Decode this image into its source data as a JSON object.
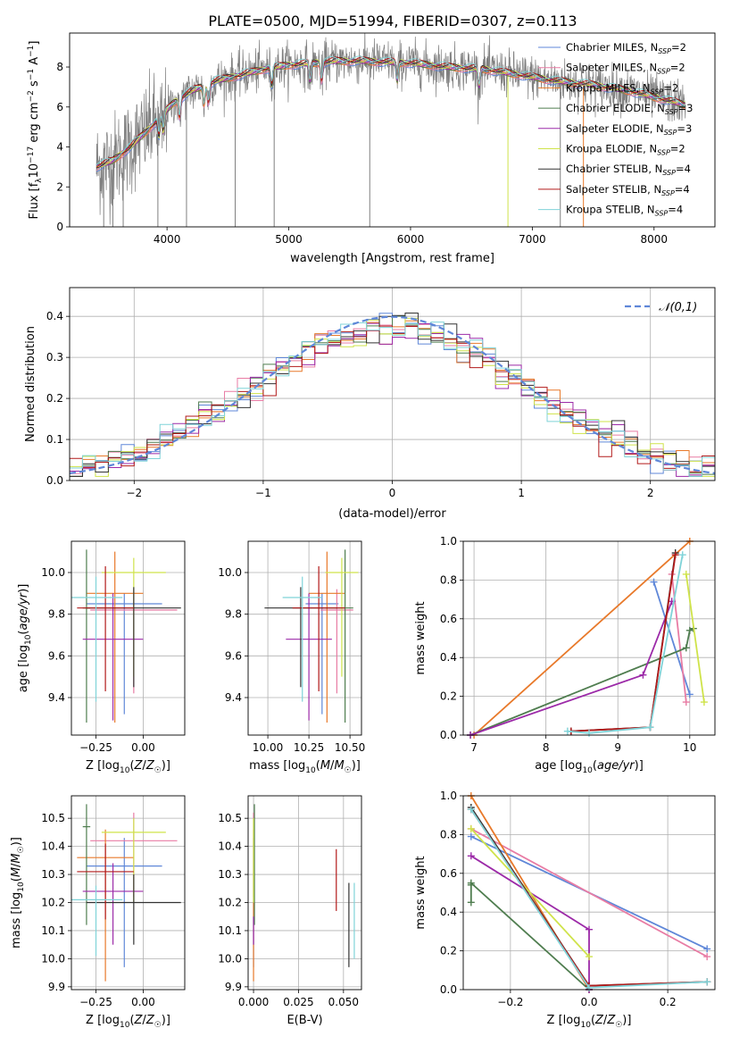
{
  "title": "PLATE=0500, MJD=51994, FIBERID=0307, z=0.113",
  "colors": {
    "Chabrier MILES": "#5f87d8",
    "Salpeter MILES": "#e87ca4",
    "Kroupa MILES": "#e8792a",
    "Chabrier ELODIE": "#4f7d4f",
    "Salpeter ELODIE": "#9c2aa8",
    "Kroupa ELODIE": "#cfe34a",
    "Chabrier STELIB": "#333333",
    "Salpeter STELIB": "#b21a1a",
    "Kroupa STELIB": "#7fd3d8",
    "data": "#7f7f7f",
    "normal": "#5f87d8",
    "grid": "#b0b0b0"
  },
  "chart_data": [
    {
      "id": "spectrum",
      "type": "line",
      "xlabel": "wavelength [Angstrom, rest frame]",
      "ylabel": "Flux [f_λ 10^-17 erg cm^-2 s^-1 A^-1]",
      "xlim": [
        3200,
        8500
      ],
      "ylim": [
        0,
        9.7
      ],
      "xticks": [
        4000,
        5000,
        6000,
        7000,
        8000
      ],
      "yticks": [
        0,
        2,
        4,
        6,
        8
      ],
      "grid": false,
      "legend_position": "top-right",
      "legend": [
        {
          "label": "Chabrier MILES, N_SSP=2",
          "prefix": "Chabrier MILES, N",
          "sub": "SSP",
          "suffix": "=2"
        },
        {
          "label": "Salpeter MILES, N_SSP=2",
          "prefix": "Salpeter MILES, N",
          "sub": "SSP",
          "suffix": "=2"
        },
        {
          "label": "Kroupa MILES, N_SSP=2",
          "prefix": "Kroupa MILES, N",
          "sub": "SSP",
          "suffix": "=2"
        },
        {
          "label": "Chabrier ELODIE, N_SSP=3",
          "prefix": "Chabrier ELODIE, N",
          "sub": "SSP",
          "suffix": "=3"
        },
        {
          "label": "Salpeter ELODIE, N_SSP=3",
          "prefix": "Salpeter ELODIE, N",
          "sub": "SSP",
          "suffix": "=3"
        },
        {
          "label": "Kroupa ELODIE, N_SSP=2",
          "prefix": "Kroupa ELODIE, N",
          "sub": "SSP",
          "suffix": "=2"
        },
        {
          "label": "Chabrier STELIB, N_SSP=4",
          "prefix": "Chabrier STELIB, N",
          "sub": "SSP",
          "suffix": "=4"
        },
        {
          "label": "Salpeter STELIB, N_SSP=4",
          "prefix": "Salpeter STELIB, N",
          "sub": "SSP",
          "suffix": "=4"
        },
        {
          "label": "Kroupa STELIB, N_SSP=4",
          "prefix": "Kroupa STELIB, N",
          "sub": "SSP",
          "suffix": "=4"
        }
      ],
      "series_keys": [
        "Chabrier MILES",
        "Salpeter MILES",
        "Kroupa MILES",
        "Chabrier ELODIE",
        "Salpeter ELODIE",
        "Kroupa ELODIE",
        "Chabrier STELIB",
        "Salpeter STELIB",
        "Kroupa STELIB"
      ],
      "data_range": [
        3420,
        8260
      ],
      "model_range": [
        3420,
        8260
      ],
      "model_continuum": {
        "x": [
          3420,
          3550,
          3700,
          3850,
          3950,
          4050,
          4200,
          4400,
          4600,
          4800,
          5000,
          5200,
          5400,
          5600,
          5800,
          6000,
          6300,
          6600,
          6900,
          7200,
          7500,
          7800,
          8000,
          8260
        ],
        "y": [
          3.0,
          3.3,
          4.0,
          4.9,
          5.5,
          6.2,
          6.8,
          7.3,
          7.6,
          7.9,
          8.1,
          8.2,
          8.3,
          8.3,
          8.25,
          8.2,
          8.0,
          7.9,
          7.6,
          7.3,
          7.1,
          6.8,
          6.5,
          6.1
        ]
      },
      "absorption_lines": [
        3934,
        3969,
        4102,
        4304,
        4340,
        4861,
        5175,
        5270,
        5890,
        6563
      ]
    },
    {
      "id": "residuals",
      "type": "histogram",
      "xlabel": "(data-model)/error",
      "ylabel": "Normed distribution",
      "xlim": [
        -2.5,
        2.5
      ],
      "ylim": [
        0,
        0.47
      ],
      "xticks": [
        -2,
        -1,
        0,
        1,
        2
      ],
      "yticks": [
        0.0,
        0.1,
        0.2,
        0.3,
        0.4
      ],
      "grid": true,
      "legend_position": "top-right",
      "legend": [
        {
          "label": "𝒩(0,1)"
        }
      ],
      "bin_width": 0.1,
      "reference_curve": "normal distribution, mean 0, sigma 1"
    },
    {
      "id": "age-vs-Z",
      "type": "errorbar",
      "xlabel": "Z [log10(Z/Z☉)]",
      "ylabel": "age [log10(age/yr)]",
      "xlim": [
        -0.38,
        0.22
      ],
      "ylim": [
        9.22,
        10.15
      ],
      "xticks": [
        -0.25,
        0.0
      ],
      "yticks": [
        9.4,
        9.6,
        9.8,
        10.0
      ],
      "grid": true,
      "points": [
        {
          "model": "Chabrier MILES",
          "x": -0.1,
          "xerr": 0.2,
          "y": 9.85,
          "yerr": [
            0.53,
            0.05
          ]
        },
        {
          "model": "Salpeter MILES",
          "x": -0.05,
          "xerr": 0.23,
          "y": 9.82,
          "yerr": [
            0.4,
            0.1
          ]
        },
        {
          "model": "Kroupa MILES",
          "x": -0.15,
          "xerr": 0.15,
          "y": 9.9,
          "yerr": [
            0.62,
            0.2
          ]
        },
        {
          "model": "Chabrier ELODIE",
          "x": -0.3,
          "xerr": 0.02,
          "y": 9.83,
          "yerr": [
            0.55,
            0.28
          ]
        },
        {
          "model": "Salpeter ELODIE",
          "x": -0.16,
          "xerr": 0.16,
          "y": 9.68,
          "yerr": [
            0.39,
            0.22
          ]
        },
        {
          "model": "Kroupa ELODIE",
          "x": -0.05,
          "xerr": 0.17,
          "y": 10.0,
          "yerr": [
            0.5,
            0.07
          ]
        },
        {
          "model": "Chabrier STELIB",
          "x": -0.05,
          "xerr": 0.25,
          "y": 9.83,
          "yerr": [
            0.38,
            0.1
          ]
        },
        {
          "model": "Salpeter STELIB",
          "x": -0.2,
          "xerr": 0.15,
          "y": 9.83,
          "yerr": [
            0.4,
            0.2
          ]
        },
        {
          "model": "Kroupa STELIB",
          "x": -0.25,
          "xerr": 0.14,
          "y": 9.88,
          "yerr": [
            0.5,
            0.1
          ]
        }
      ]
    },
    {
      "id": "age-vs-mass",
      "type": "errorbar",
      "xlabel": "mass [log10(M/M☉)]",
      "ylabel": "",
      "xlim": [
        9.88,
        10.57
      ],
      "ylim": [
        9.22,
        10.15
      ],
      "xticks": [
        10.0,
        10.25,
        10.5
      ],
      "yticks": [
        9.4,
        9.6,
        9.8,
        10.0
      ],
      "grid": true,
      "points": [
        {
          "model": "Chabrier MILES",
          "x": 10.33,
          "xerr": 0.1,
          "y": 9.85,
          "yerr": [
            0.53,
            0.05
          ]
        },
        {
          "model": "Salpeter MILES",
          "x": 10.42,
          "xerr": 0.1,
          "y": 9.82,
          "yerr": [
            0.4,
            0.1
          ]
        },
        {
          "model": "Kroupa MILES",
          "x": 10.36,
          "xerr": 0.11,
          "y": 9.9,
          "yerr": [
            0.62,
            0.2
          ]
        },
        {
          "model": "Chabrier ELODIE",
          "x": 10.47,
          "xerr": 0.05,
          "y": 9.83,
          "yerr": [
            0.55,
            0.28
          ]
        },
        {
          "model": "Salpeter ELODIE",
          "x": 10.25,
          "xerr": 0.14,
          "y": 9.68,
          "yerr": [
            0.39,
            0.22
          ]
        },
        {
          "model": "Kroupa ELODIE",
          "x": 10.45,
          "xerr": 0.1,
          "y": 10.0,
          "yerr": [
            0.5,
            0.07
          ]
        },
        {
          "model": "Chabrier STELIB",
          "x": 10.2,
          "xerr": 0.22,
          "y": 9.83,
          "yerr": [
            0.38,
            0.1
          ]
        },
        {
          "model": "Salpeter STELIB",
          "x": 10.31,
          "xerr": 0.16,
          "y": 9.83,
          "yerr": [
            0.4,
            0.2
          ]
        },
        {
          "model": "Kroupa STELIB",
          "x": 10.21,
          "xerr": 0.12,
          "y": 9.88,
          "yerr": [
            0.5,
            0.1
          ]
        }
      ]
    },
    {
      "id": "weight-vs-age",
      "type": "line",
      "xlabel": "age [log10(age/yr)]",
      "ylabel": "mass weight",
      "xlim": [
        6.85,
        10.35
      ],
      "ylim": [
        0,
        1.0
      ],
      "xticks": [
        7,
        8,
        9,
        10
      ],
      "yticks": [
        0.0,
        0.2,
        0.4,
        0.6,
        0.8,
        1.0
      ],
      "grid": true,
      "series": [
        {
          "model": "Chabrier MILES",
          "x": [
            9.5,
            10.0
          ],
          "y": [
            0.79,
            0.21
          ]
        },
        {
          "model": "Salpeter MILES",
          "x": [
            9.75,
            9.95
          ],
          "y": [
            0.83,
            0.17
          ]
        },
        {
          "model": "Kroupa MILES",
          "x": [
            7.0,
            10.0
          ],
          "y": [
            0.0,
            1.0
          ]
        },
        {
          "model": "Chabrier ELODIE",
          "x": [
            6.95,
            9.95,
            10.0,
            10.05
          ],
          "y": [
            0.0,
            0.45,
            0.54,
            0.55
          ]
        },
        {
          "model": "Salpeter ELODIE",
          "x": [
            6.95,
            9.35,
            9.75
          ],
          "y": [
            0.0,
            0.31,
            0.69
          ]
        },
        {
          "model": "Kroupa ELODIE",
          "x": [
            9.95,
            10.2
          ],
          "y": [
            0.83,
            0.17
          ]
        },
        {
          "model": "Chabrier STELIB",
          "x": [
            8.35,
            9.45,
            9.8
          ],
          "y": [
            0.02,
            0.04,
            0.94
          ]
        },
        {
          "model": "Salpeter STELIB",
          "x": [
            8.35,
            9.45,
            9.8
          ],
          "y": [
            0.02,
            0.04,
            0.93
          ]
        },
        {
          "model": "Kroupa STELIB",
          "x": [
            8.3,
            8.6,
            9.45,
            9.9
          ],
          "y": [
            0.02,
            0.01,
            0.04,
            0.93
          ]
        }
      ]
    },
    {
      "id": "mass-vs-Z",
      "type": "errorbar",
      "xlabel": "Z [log10(Z/Z☉)]",
      "ylabel": "mass [log10(M/M☉)]",
      "xlim": [
        -0.38,
        0.22
      ],
      "ylim": [
        9.89,
        10.58
      ],
      "xticks": [
        -0.25,
        0.0
      ],
      "yticks": [
        9.9,
        10.0,
        10.1,
        10.2,
        10.3,
        10.4,
        10.5
      ],
      "grid": true,
      "points": [
        {
          "model": "Chabrier MILES",
          "x": -0.1,
          "xerr": 0.2,
          "y": 10.33,
          "yerr": [
            0.36,
            0.1
          ]
        },
        {
          "model": "Salpeter MILES",
          "x": -0.05,
          "xerr": 0.23,
          "y": 10.42,
          "yerr": [
            0.2,
            0.1
          ]
        },
        {
          "model": "Kroupa MILES",
          "x": -0.2,
          "xerr": 0.15,
          "y": 10.36,
          "yerr": [
            0.44,
            0.1
          ]
        },
        {
          "model": "Chabrier ELODIE",
          "x": -0.3,
          "xerr": 0.02,
          "y": 10.47,
          "yerr": [
            0.35,
            0.08
          ]
        },
        {
          "model": "Salpeter ELODIE",
          "x": -0.16,
          "xerr": 0.16,
          "y": 10.24,
          "yerr": [
            0.19,
            0.1
          ]
        },
        {
          "model": "Kroupa ELODIE",
          "x": -0.05,
          "xerr": 0.17,
          "y": 10.45,
          "yerr": [
            0.25,
            0.05
          ]
        },
        {
          "model": "Chabrier STELIB",
          "x": -0.05,
          "xerr": 0.25,
          "y": 10.2,
          "yerr": [
            0.15,
            0.1
          ]
        },
        {
          "model": "Salpeter STELIB",
          "x": -0.2,
          "xerr": 0.15,
          "y": 10.31,
          "yerr": [
            0.17,
            0.1
          ]
        },
        {
          "model": "Kroupa STELIB",
          "x": -0.25,
          "xerr": 0.14,
          "y": 10.21,
          "yerr": [
            0.2,
            0.05
          ]
        }
      ]
    },
    {
      "id": "mass-vs-ebv",
      "type": "errorbar",
      "xlabel": "E(B-V)",
      "ylabel": "",
      "xlim": [
        -0.003,
        0.06
      ],
      "ylim": [
        9.89,
        10.58
      ],
      "xticks": [
        0.0,
        0.025,
        0.05
      ],
      "yticks": [
        9.9,
        10.0,
        10.1,
        10.2,
        10.3,
        10.4,
        10.5
      ],
      "grid": true,
      "points": [
        {
          "model": "Chabrier MILES",
          "x": 0.0,
          "y": 10.33,
          "yerr": [
            0.36,
            0.1
          ]
        },
        {
          "model": "Salpeter MILES",
          "x": 0.0,
          "y": 10.42,
          "yerr": [
            0.2,
            0.1
          ]
        },
        {
          "model": "Kroupa MILES",
          "x": 0.0,
          "y": 10.36,
          "yerr": [
            0.44,
            0.1
          ]
        },
        {
          "model": "Chabrier ELODIE",
          "x": 0.0005,
          "y": 10.47,
          "yerr": [
            0.35,
            0.08
          ]
        },
        {
          "model": "Salpeter ELODIE",
          "x": 0.0,
          "y": 10.1,
          "yerr": [
            0.05,
            0.05
          ]
        },
        {
          "model": "Kroupa ELODIE",
          "x": 0.0,
          "y": 10.45,
          "yerr": [
            0.25,
            0.05
          ]
        },
        {
          "model": "Chabrier STELIB",
          "x": 0.053,
          "y": 10.07,
          "yerr": [
            0.1,
            0.2
          ]
        },
        {
          "model": "Salpeter STELIB",
          "x": 0.046,
          "y": 10.28,
          "yerr": [
            0.11,
            0.11
          ]
        },
        {
          "model": "Kroupa STELIB",
          "x": 0.056,
          "y": 10.1,
          "yerr": [
            0.1,
            0.17
          ]
        }
      ]
    },
    {
      "id": "weight-vs-Z",
      "type": "line",
      "xlabel": "Z [log10(Z/Z☉)]",
      "ylabel": "mass weight",
      "xlim": [
        -0.32,
        0.32
      ],
      "ylim": [
        0,
        1.0
      ],
      "xticks": [
        -0.2,
        0.0,
        0.2
      ],
      "yticks": [
        0.0,
        0.2,
        0.4,
        0.6,
        0.8,
        1.0
      ],
      "grid": true,
      "series": [
        {
          "model": "Chabrier MILES",
          "x": [
            -0.3,
            0.3
          ],
          "y": [
            0.79,
            0.21
          ]
        },
        {
          "model": "Salpeter MILES",
          "x": [
            -0.3,
            0.3
          ],
          "y": [
            0.83,
            0.17
          ]
        },
        {
          "model": "Kroupa MILES",
          "x": [
            -0.3,
            0.0
          ],
          "y": [
            1.0,
            0.0
          ]
        },
        {
          "model": "Chabrier ELODIE",
          "x": [
            -0.3,
            -0.3,
            -0.3,
            0.0
          ],
          "y": [
            0.45,
            0.54,
            0.55,
            0.0
          ]
        },
        {
          "model": "Salpeter ELODIE",
          "x": [
            -0.3,
            0.0,
            0.0
          ],
          "y": [
            0.69,
            0.31,
            0.0
          ]
        },
        {
          "model": "Kroupa ELODIE",
          "x": [
            -0.3,
            0.0
          ],
          "y": [
            0.83,
            0.17
          ]
        },
        {
          "model": "Chabrier STELIB",
          "x": [
            -0.3,
            0.0,
            0.3
          ],
          "y": [
            0.94,
            0.02,
            0.04
          ]
        },
        {
          "model": "Salpeter STELIB",
          "x": [
            -0.3,
            0.0,
            0.3
          ],
          "y": [
            0.93,
            0.02,
            0.04
          ]
        },
        {
          "model": "Kroupa STELIB",
          "x": [
            -0.3,
            0.0,
            0.3
          ],
          "y": [
            0.93,
            0.01,
            0.04
          ]
        }
      ]
    }
  ]
}
